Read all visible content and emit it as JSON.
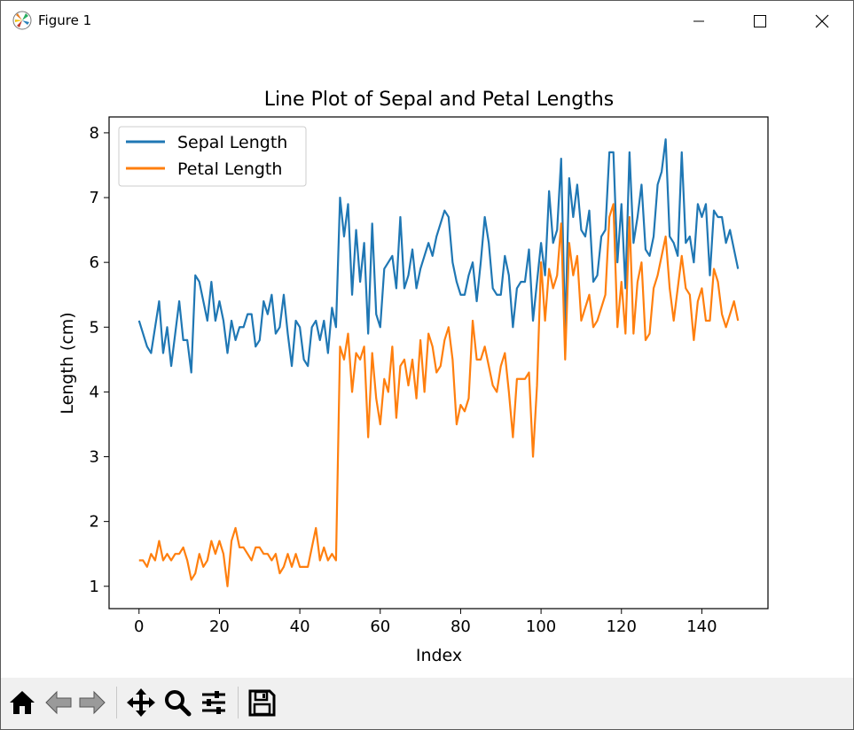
{
  "window": {
    "title": "Figure 1",
    "icons": {
      "app": "matplotlib-icon",
      "minimize": "minimize-icon",
      "maximize": "maximize-icon",
      "close": "close-icon"
    }
  },
  "toolbar": {
    "buttons": [
      {
        "name": "home",
        "icon": "home-icon"
      },
      {
        "name": "back",
        "icon": "arrow-left-icon"
      },
      {
        "name": "forward",
        "icon": "arrow-right-icon"
      },
      {
        "name": "pan",
        "icon": "move-icon"
      },
      {
        "name": "zoom",
        "icon": "magnifier-icon"
      },
      {
        "name": "configure",
        "icon": "sliders-icon"
      },
      {
        "name": "save",
        "icon": "save-icon"
      }
    ]
  },
  "chart_data": {
    "type": "line",
    "title": "Line Plot of Sepal and Petal Lengths",
    "xlabel": "Index",
    "ylabel": "Length (cm)",
    "xlim": [
      -7.45,
      156.45
    ],
    "ylim": [
      0.655,
      8.245
    ],
    "xticks": [
      0,
      20,
      40,
      60,
      80,
      100,
      120,
      140
    ],
    "yticks": [
      1,
      2,
      3,
      4,
      5,
      6,
      7,
      8
    ],
    "grid": false,
    "legend": "upper left",
    "series": [
      {
        "name": "Sepal Length",
        "color": "#1f77b4",
        "values": [
          5.1,
          4.9,
          4.7,
          4.6,
          5.0,
          5.4,
          4.6,
          5.0,
          4.4,
          4.9,
          5.4,
          4.8,
          4.8,
          4.3,
          5.8,
          5.7,
          5.4,
          5.1,
          5.7,
          5.1,
          5.4,
          5.1,
          4.6,
          5.1,
          4.8,
          5.0,
          5.0,
          5.2,
          5.2,
          4.7,
          4.8,
          5.4,
          5.2,
          5.5,
          4.9,
          5.0,
          5.5,
          4.9,
          4.4,
          5.1,
          5.0,
          4.5,
          4.4,
          5.0,
          5.1,
          4.8,
          5.1,
          4.6,
          5.3,
          5.0,
          7.0,
          6.4,
          6.9,
          5.5,
          6.5,
          5.7,
          6.3,
          4.9,
          6.6,
          5.2,
          5.0,
          5.9,
          6.0,
          6.1,
          5.6,
          6.7,
          5.6,
          5.8,
          6.2,
          5.6,
          5.9,
          6.1,
          6.3,
          6.1,
          6.4,
          6.6,
          6.8,
          6.7,
          6.0,
          5.7,
          5.5,
          5.5,
          5.8,
          6.0,
          5.4,
          6.0,
          6.7,
          6.3,
          5.6,
          5.5,
          5.5,
          6.1,
          5.8,
          5.0,
          5.6,
          5.7,
          5.7,
          6.2,
          5.1,
          5.7,
          6.3,
          5.8,
          7.1,
          6.3,
          6.5,
          7.6,
          4.9,
          7.3,
          6.7,
          7.2,
          6.5,
          6.4,
          6.8,
          5.7,
          5.8,
          6.4,
          6.5,
          7.7,
          7.7,
          6.0,
          6.9,
          5.6,
          7.7,
          6.3,
          6.7,
          7.2,
          6.2,
          6.1,
          6.4,
          7.2,
          7.4,
          7.9,
          6.4,
          6.3,
          6.1,
          7.7,
          6.3,
          6.4,
          6.0,
          6.9,
          6.7,
          6.9,
          5.8,
          6.8,
          6.7,
          6.7,
          6.3,
          6.5,
          6.2,
          5.9
        ]
      },
      {
        "name": "Petal Length",
        "color": "#ff7f0e",
        "values": [
          1.4,
          1.4,
          1.3,
          1.5,
          1.4,
          1.7,
          1.4,
          1.5,
          1.4,
          1.5,
          1.5,
          1.6,
          1.4,
          1.1,
          1.2,
          1.5,
          1.3,
          1.4,
          1.7,
          1.5,
          1.7,
          1.5,
          1.0,
          1.7,
          1.9,
          1.6,
          1.6,
          1.5,
          1.4,
          1.6,
          1.6,
          1.5,
          1.5,
          1.4,
          1.5,
          1.2,
          1.3,
          1.5,
          1.3,
          1.5,
          1.3,
          1.3,
          1.3,
          1.6,
          1.9,
          1.4,
          1.6,
          1.4,
          1.5,
          1.4,
          4.7,
          4.5,
          4.9,
          4.0,
          4.6,
          4.5,
          4.7,
          3.3,
          4.6,
          3.9,
          3.5,
          4.2,
          4.0,
          4.7,
          3.6,
          4.4,
          4.5,
          4.1,
          4.5,
          3.9,
          4.8,
          4.0,
          4.9,
          4.7,
          4.3,
          4.4,
          4.8,
          5.0,
          4.5,
          3.5,
          3.8,
          3.7,
          3.9,
          5.1,
          4.5,
          4.5,
          4.7,
          4.4,
          4.1,
          4.0,
          4.4,
          4.6,
          4.0,
          3.3,
          4.2,
          4.2,
          4.2,
          4.3,
          3.0,
          4.1,
          6.0,
          5.1,
          5.9,
          5.6,
          5.8,
          6.6,
          4.5,
          6.3,
          5.8,
          6.1,
          5.1,
          5.3,
          5.5,
          5.0,
          5.1,
          5.3,
          5.5,
          6.7,
          6.9,
          5.0,
          5.7,
          4.9,
          6.7,
          4.9,
          5.7,
          6.0,
          4.8,
          4.9,
          5.6,
          5.8,
          6.1,
          6.4,
          5.6,
          5.1,
          5.6,
          6.1,
          5.6,
          5.5,
          4.8,
          5.4,
          5.6,
          5.1,
          5.1,
          5.9,
          5.7,
          5.2,
          5.0,
          5.2,
          5.4,
          5.1
        ]
      }
    ]
  }
}
